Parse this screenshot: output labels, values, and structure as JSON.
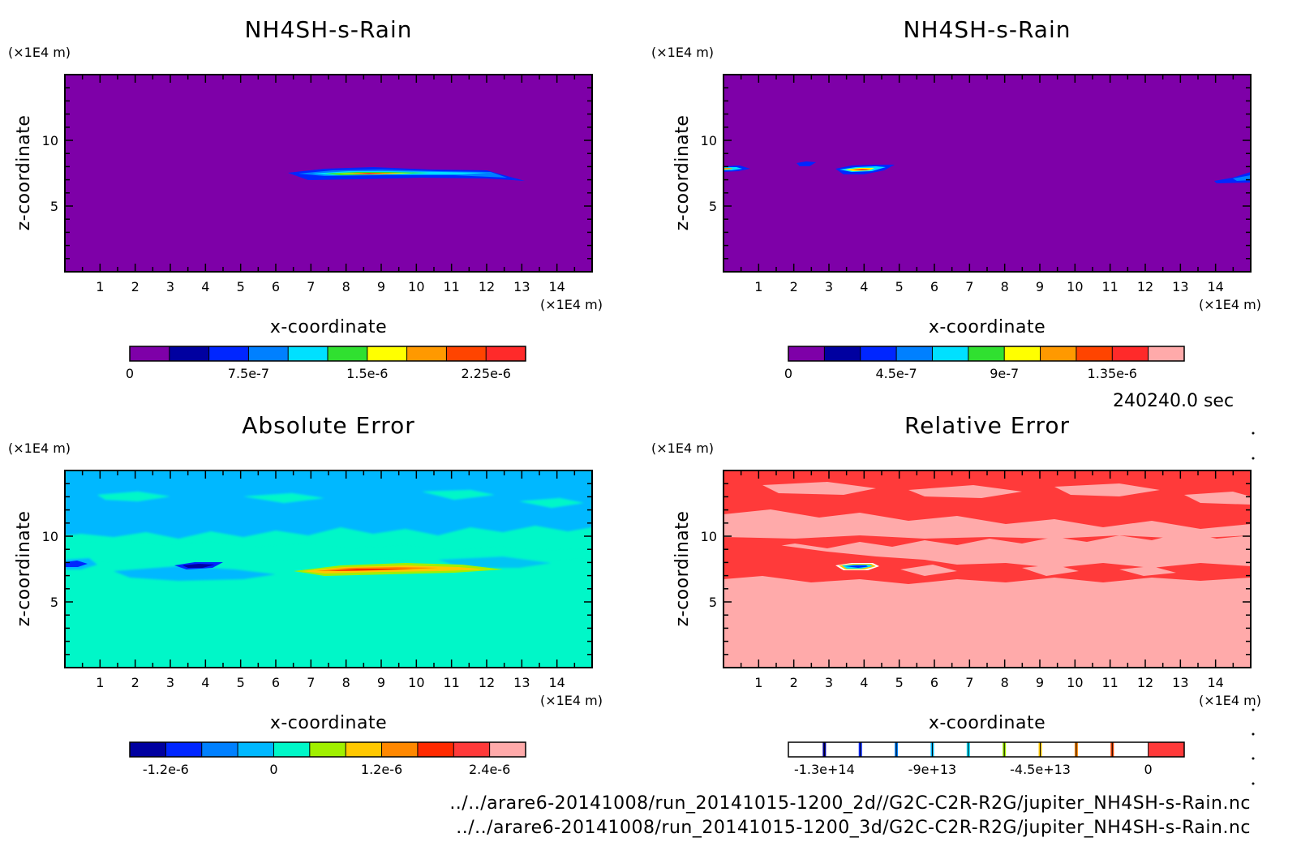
{
  "timestamp": "240240.0 sec",
  "files": [
    "../../arare6-20141008/run_20141015-1200_2d//G2C-C2R-R2G/jupiter_NH4SH-s-Rain.nc",
    "../../arare6-20141008/run_20141015-1200_3d/G2C-C2R-R2G/jupiter_NH4SH-s-Rain.nc"
  ],
  "chart_data": [
    {
      "type": "heatmap",
      "title": "NH4SH-s-Rain",
      "xlabel": "x-coordinate",
      "ylabel": "z-coordinate",
      "xunit": "(×1E4 m)",
      "yunit": "(×1E4 m)",
      "xlim": [
        0,
        15
      ],
      "ylim": [
        0,
        15
      ],
      "x_ticks": [
        "1",
        "2",
        "3",
        "4",
        "5",
        "6",
        "7",
        "8",
        "9",
        "10",
        "11",
        "12",
        "13",
        "14"
      ],
      "y_ticks": [
        "5",
        "10"
      ],
      "background": "#7e00a8",
      "features": [
        {
          "x": [
            6.5,
            12.7
          ],
          "z": [
            6.8,
            7.6
          ],
          "peak_x": 8.8,
          "peak_z": 7.4
        }
      ],
      "colorbar": {
        "colors": [
          "#7e00a8",
          "#0000a0",
          "#0026ff",
          "#0080ff",
          "#00e0ff",
          "#30e030",
          "#ffff00",
          "#ff9900",
          "#ff4400",
          "#ff2a2a"
        ],
        "tick_labels": [
          "0",
          "7.5e-7",
          "1.5e-6",
          "2.25e-6"
        ]
      }
    },
    {
      "type": "heatmap",
      "title": "NH4SH-s-Rain",
      "xlabel": "x-coordinate",
      "ylabel": "z-coordinate",
      "xunit": "(×1E4 m)",
      "yunit": "(×1E4 m)",
      "xlim": [
        0,
        15
      ],
      "ylim": [
        0,
        15
      ],
      "x_ticks": [
        "1",
        "2",
        "3",
        "4",
        "5",
        "6",
        "7",
        "8",
        "9",
        "10",
        "11",
        "12",
        "13",
        "14"
      ],
      "y_ticks": [
        "5",
        "10"
      ],
      "background": "#7e00a8",
      "features": [
        {
          "x": [
            0,
            0.8
          ],
          "z": [
            7.5,
            8.0
          ]
        },
        {
          "x": [
            2.0,
            2.6
          ],
          "z": [
            8.0,
            8.3
          ]
        },
        {
          "x": [
            3.1,
            4.8
          ],
          "z": [
            7.5,
            8.0
          ]
        },
        {
          "x": [
            14.0,
            15.0
          ],
          "z": [
            6.8,
            7.4
          ]
        }
      ],
      "colorbar": {
        "colors": [
          "#7e00a8",
          "#0000a0",
          "#0026ff",
          "#0080ff",
          "#00e0ff",
          "#30e030",
          "#ffff00",
          "#ff9900",
          "#ff4400",
          "#ff2a2a",
          "#ffaaaa"
        ],
        "tick_labels": [
          "0",
          "4.5e-7",
          "9e-7",
          "1.35e-6"
        ]
      }
    },
    {
      "type": "heatmap",
      "title": "Absolute Error",
      "xlabel": "x-coordinate",
      "ylabel": "z-coordinate",
      "xunit": "(×1E4 m)",
      "yunit": "(×1E4 m)",
      "xlim": [
        0,
        15
      ],
      "ylim": [
        0,
        15
      ],
      "x_ticks": [
        "1",
        "2",
        "3",
        "4",
        "5",
        "6",
        "7",
        "8",
        "9",
        "10",
        "11",
        "12",
        "13",
        "14"
      ],
      "y_ticks": [
        "5",
        "10"
      ],
      "background": "#00f7c8",
      "colorbar": {
        "colors": [
          "#0000a0",
          "#0026ff",
          "#0080ff",
          "#00b8ff",
          "#00f7c8",
          "#a0f000",
          "#ffc800",
          "#ff8800",
          "#ff2a00",
          "#ff3a3a",
          "#ffaaaa"
        ],
        "tick_labels": [
          "-1.2e-6",
          "0",
          "1.2e-6",
          "2.4e-6"
        ]
      }
    },
    {
      "type": "heatmap",
      "title": "Relative Error",
      "xlabel": "x-coordinate",
      "ylabel": "z-coordinate",
      "xunit": "(×1E4 m)",
      "yunit": "(×1E4 m)",
      "xlim": [
        0,
        15
      ],
      "ylim": [
        0,
        15
      ],
      "x_ticks": [
        "1",
        "2",
        "3",
        "4",
        "5",
        "6",
        "7",
        "8",
        "9",
        "10",
        "11",
        "12",
        "13",
        "14"
      ],
      "y_ticks": [
        "5",
        "10"
      ],
      "background": "#ffaaaa",
      "colorbar": {
        "colors": [
          "#ffffff",
          "#ffffff",
          "#ffffff",
          "#ffffff",
          "#ffffff",
          "#ffffff",
          "#ffffff",
          "#ffffff",
          "#ffffff",
          "#ffffff",
          "#ff3a3a"
        ],
        "tick_marks": [
          "#0000a0",
          "#0026ff",
          "#0080ff",
          "#00b8ff",
          "#00e0ff",
          "#a0f000",
          "#ffc800",
          "#ff8800",
          "#ff4400"
        ],
        "tick_labels": [
          "-1.3e+14",
          "-9e+13",
          "-4.5e+13",
          "0"
        ]
      }
    }
  ]
}
